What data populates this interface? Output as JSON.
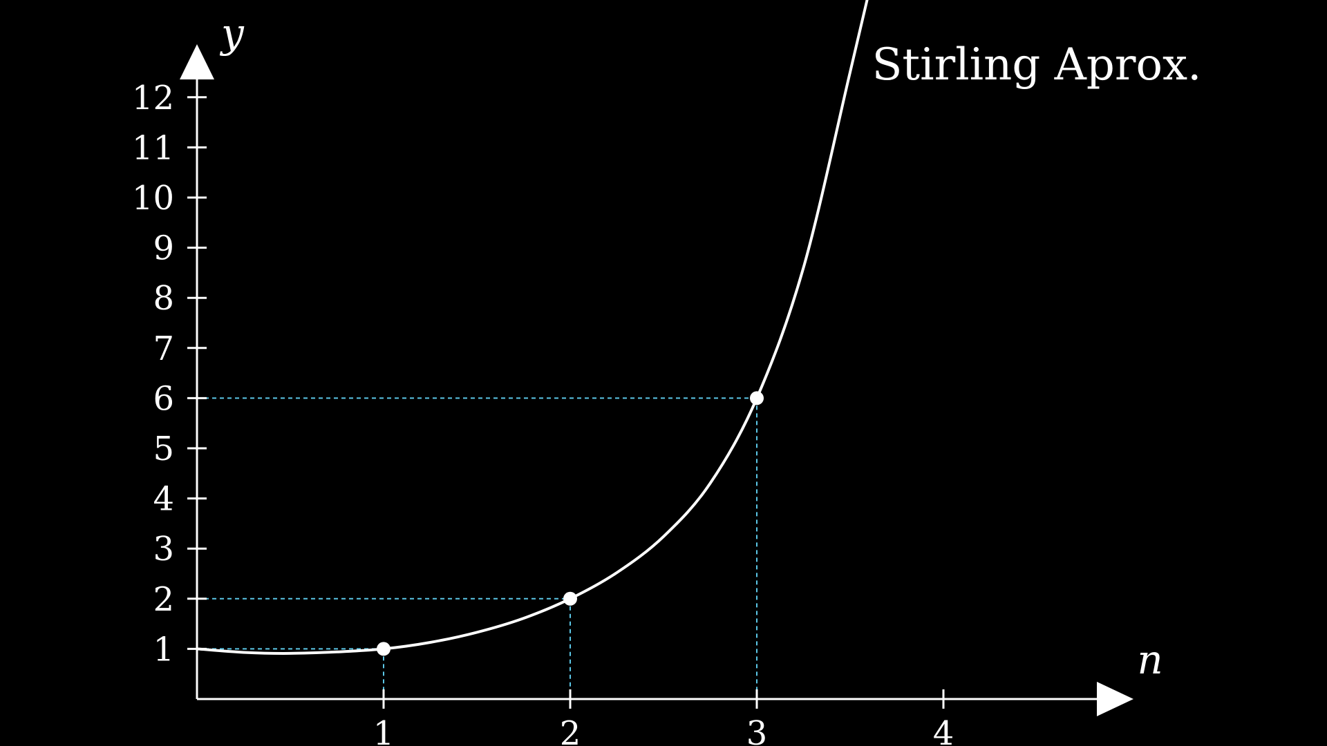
{
  "chart_data": {
    "type": "line",
    "title": "Stirling Aprox.",
    "xlabel": "n",
    "ylabel": "y",
    "xlim": [
      0,
      5
    ],
    "ylim": [
      0,
      12
    ],
    "x_ticks": [
      "1",
      "2",
      "3",
      "4"
    ],
    "y_ticks": [
      "1",
      "2",
      "3",
      "4",
      "5",
      "6",
      "7",
      "8",
      "9",
      "10",
      "11",
      "12"
    ],
    "series": [
      {
        "x": [
          0,
          0.25,
          0.5,
          0.75,
          1,
          1.25,
          1.5,
          1.75,
          2,
          2.25,
          2.5,
          2.75,
          3,
          3.25,
          3.5,
          3.62
        ],
        "y": [
          1,
          0.93,
          0.91,
          0.94,
          1,
          1.13,
          1.33,
          1.61,
          2,
          2.52,
          3.24,
          4.3,
          6,
          8.6,
          12.5,
          14.4
        ]
      }
    ],
    "points": [
      {
        "x": 1,
        "y": 1
      },
      {
        "x": 2,
        "y": 2
      },
      {
        "x": 3,
        "y": 6
      }
    ],
    "grid": false,
    "colors": {
      "background": "#000000",
      "axis": "#ffffff",
      "curve": "#ffffff",
      "guides": "#5cc8e8"
    }
  }
}
